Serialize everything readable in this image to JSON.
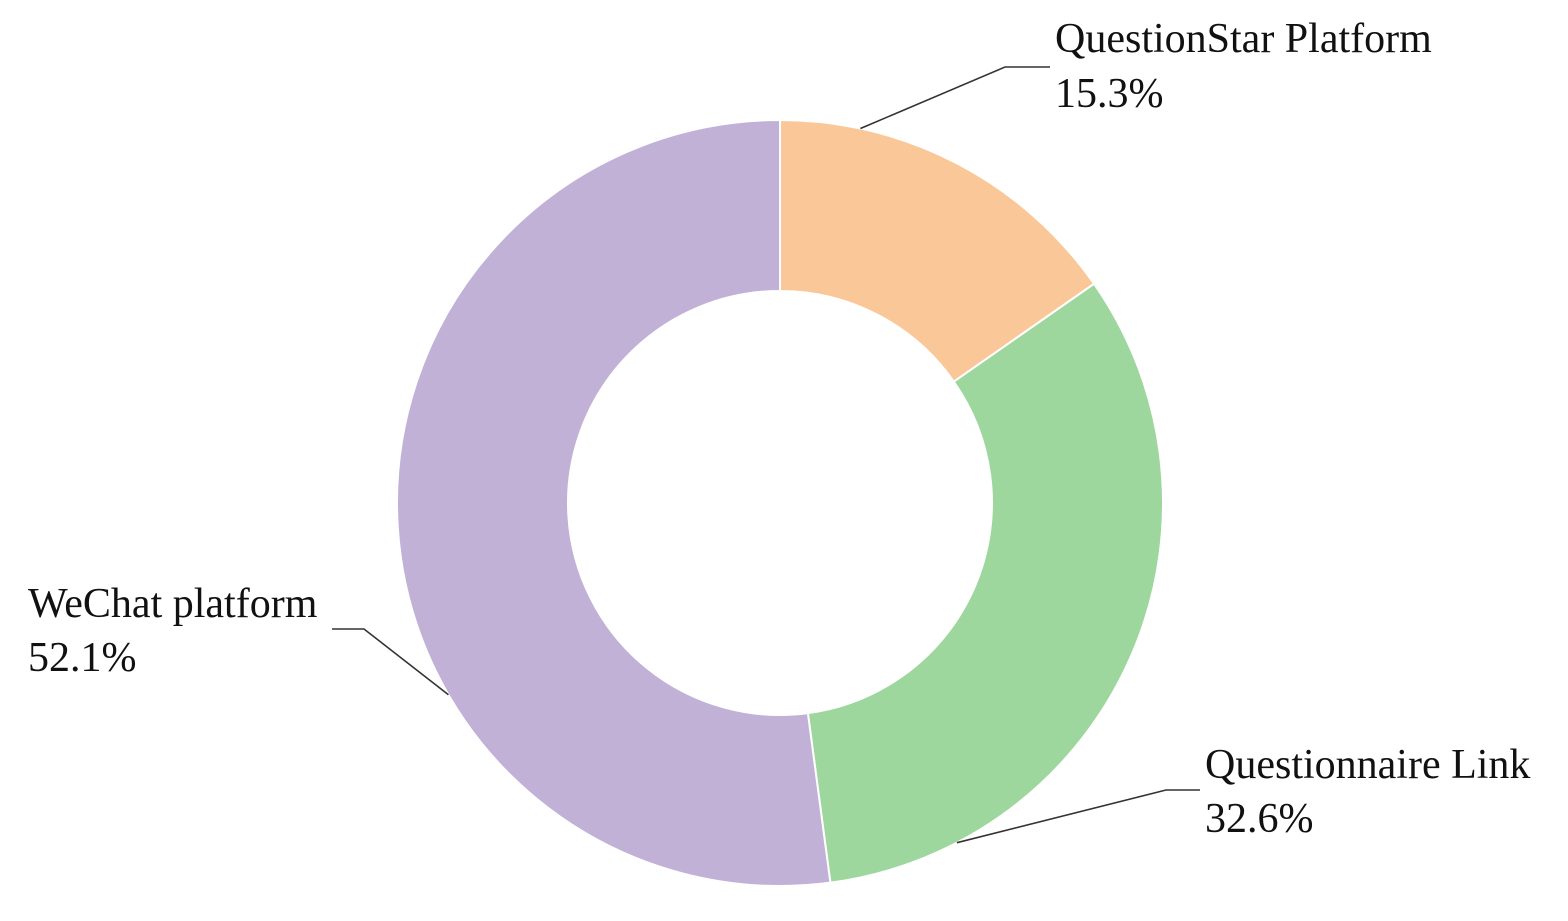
{
  "chart_data": {
    "type": "pie",
    "variant": "donut",
    "title": "",
    "start_angle_deg": 0,
    "direction": "clockwise",
    "slices": [
      {
        "label": "QuestionStar Platform",
        "value": 15.3,
        "value_label": "15.3%",
        "color": "#FAC898"
      },
      {
        "label": "Questionnaire Link",
        "value": 32.6,
        "value_label": "32.6%",
        "color": "#9DD79D"
      },
      {
        "label": "WeChat platform",
        "value": 52.1,
        "value_label": "52.1%",
        "color": "#C1B1D6"
      }
    ],
    "legend": "none",
    "data_labels": "outside with leader lines"
  }
}
